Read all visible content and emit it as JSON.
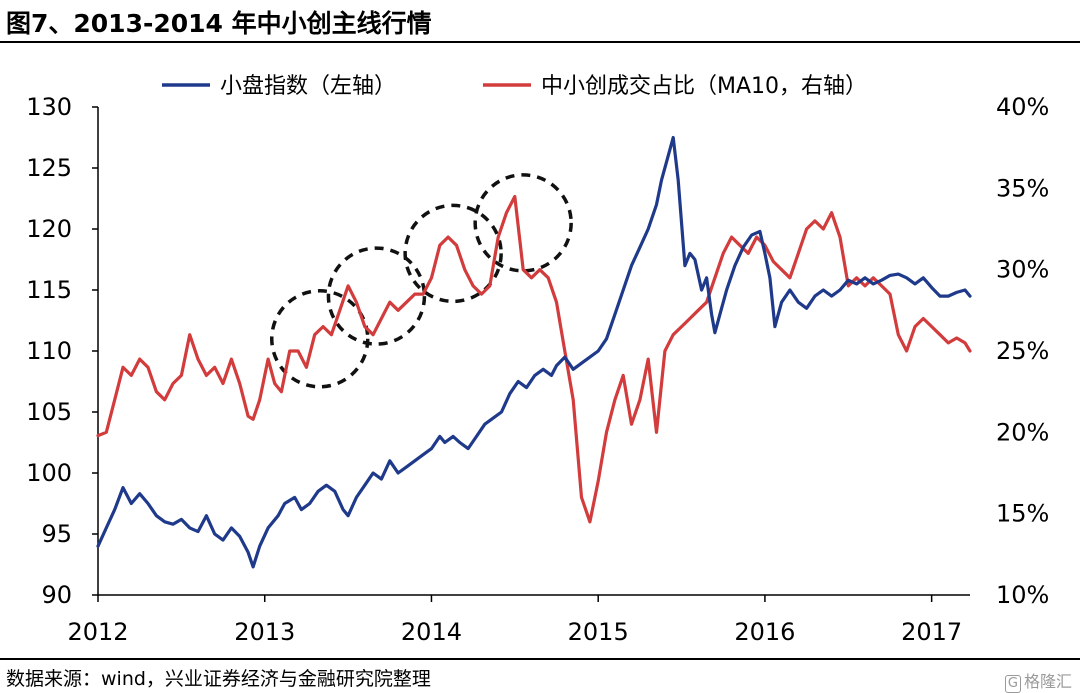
{
  "figure": {
    "title": "图7、2013-2014 年中小创主线行情",
    "source": "数据来源：wind，兴业证券经济与金融研究院整理",
    "watermark": "格隆汇",
    "watermark_icon": "G"
  },
  "chart_data": {
    "type": "line",
    "title": "",
    "grid": false,
    "legend_position": "top",
    "x_axis": {
      "min": 2012,
      "max": 2017.23,
      "ticks": [
        2012,
        2013,
        2014,
        2015,
        2016,
        2017
      ],
      "tick_labels": [
        "2012",
        "2013",
        "2014",
        "2015",
        "2016",
        "2017"
      ]
    },
    "y_left": {
      "min": 90,
      "max": 130,
      "ticks": [
        90,
        95,
        100,
        105,
        110,
        115,
        120,
        125,
        130
      ],
      "tick_labels": [
        "90",
        "95",
        "100",
        "105",
        "110",
        "115",
        "120",
        "125",
        "130"
      ]
    },
    "y_right": {
      "min": 10,
      "max": 40,
      "ticks": [
        10,
        15,
        20,
        25,
        30,
        35,
        40
      ],
      "tick_labels": [
        "10%",
        "15%",
        "20%",
        "25%",
        "30%",
        "35%",
        "40%"
      ]
    },
    "series": [
      {
        "name": "小盘指数（左轴）",
        "axis": "left",
        "color": "#1f3a8a",
        "x": [
          2012.0,
          2012.05,
          2012.1,
          2012.15,
          2012.2,
          2012.25,
          2012.3,
          2012.35,
          2012.4,
          2012.45,
          2012.5,
          2012.55,
          2012.6,
          2012.65,
          2012.7,
          2012.75,
          2012.8,
          2012.85,
          2012.9,
          2012.93,
          2012.97,
          2013.02,
          2013.08,
          2013.12,
          2013.18,
          2013.22,
          2013.27,
          2013.32,
          2013.37,
          2013.42,
          2013.47,
          2013.5,
          2013.55,
          2013.6,
          2013.65,
          2013.7,
          2013.75,
          2013.8,
          2013.85,
          2013.9,
          2013.95,
          2014.0,
          2014.05,
          2014.08,
          2014.13,
          2014.17,
          2014.22,
          2014.27,
          2014.32,
          2014.37,
          2014.42,
          2014.47,
          2014.52,
          2014.57,
          2014.62,
          2014.67,
          2014.72,
          2014.75,
          2014.8,
          2014.85,
          2014.9,
          2014.95,
          2015.0,
          2015.05,
          2015.1,
          2015.15,
          2015.2,
          2015.25,
          2015.3,
          2015.35,
          2015.38,
          2015.42,
          2015.45,
          2015.48,
          2015.52,
          2015.55,
          2015.58,
          2015.62,
          2015.65,
          2015.68,
          2015.7,
          2015.73,
          2015.77,
          2015.82,
          2015.87,
          2015.92,
          2015.97,
          2016.0,
          2016.03,
          2016.06,
          2016.1,
          2016.15,
          2016.2,
          2016.25,
          2016.3,
          2016.35,
          2016.4,
          2016.45,
          2016.5,
          2016.55,
          2016.6,
          2016.65,
          2016.7,
          2016.75,
          2016.8,
          2016.85,
          2016.9,
          2016.95,
          2017.0,
          2017.05,
          2017.1,
          2017.15,
          2017.2,
          2017.23
        ],
        "values": [
          94,
          95.5,
          97,
          98.8,
          97.5,
          98.3,
          97.5,
          96.5,
          96,
          95.8,
          96.2,
          95.5,
          95.2,
          96.5,
          95,
          94.5,
          95.5,
          94.8,
          93.5,
          92.3,
          94,
          95.5,
          96.5,
          97.5,
          98,
          97,
          97.5,
          98.5,
          99,
          98.5,
          97,
          96.5,
          98,
          99,
          100,
          99.5,
          101,
          100,
          100.5,
          101,
          101.5,
          102,
          103,
          102.5,
          103,
          102.5,
          102,
          103,
          104,
          104.5,
          105,
          106.5,
          107.5,
          107,
          108,
          108.5,
          108,
          108.8,
          109.5,
          108.5,
          109,
          109.5,
          110,
          111,
          113,
          115,
          117,
          118.5,
          120,
          122,
          124,
          126,
          127.5,
          124,
          117,
          118,
          117.5,
          115,
          116,
          113,
          111.5,
          113,
          115,
          117,
          118.5,
          119.5,
          119.8,
          118,
          116,
          112,
          114,
          115,
          114,
          113.5,
          114.5,
          115,
          114.5,
          115,
          115.8,
          115.5,
          116,
          115.5,
          115.8,
          116.2,
          116.3,
          116,
          115.5,
          116,
          115.2,
          114.5,
          114.5,
          114.8,
          115,
          114.5
        ]
      },
      {
        "name": "中小创成交占比（MA10，右轴）",
        "axis": "right",
        "color": "#d23c3c",
        "x": [
          2012.0,
          2012.05,
          2012.1,
          2012.15,
          2012.2,
          2012.25,
          2012.3,
          2012.35,
          2012.4,
          2012.45,
          2012.5,
          2012.55,
          2012.6,
          2012.65,
          2012.7,
          2012.75,
          2012.8,
          2012.85,
          2012.9,
          2012.93,
          2012.97,
          2013.02,
          2013.06,
          2013.1,
          2013.15,
          2013.2,
          2013.25,
          2013.3,
          2013.35,
          2013.4,
          2013.45,
          2013.5,
          2013.55,
          2013.6,
          2013.65,
          2013.7,
          2013.75,
          2013.8,
          2013.85,
          2013.9,
          2013.95,
          2014.0,
          2014.05,
          2014.1,
          2014.15,
          2014.2,
          2014.25,
          2014.3,
          2014.35,
          2014.4,
          2014.45,
          2014.5,
          2014.55,
          2014.6,
          2014.65,
          2014.7,
          2014.75,
          2014.8,
          2014.85,
          2014.9,
          2014.95,
          2015.0,
          2015.05,
          2015.1,
          2015.15,
          2015.2,
          2015.25,
          2015.3,
          2015.35,
          2015.4,
          2015.45,
          2015.5,
          2015.55,
          2015.6,
          2015.65,
          2015.7,
          2015.75,
          2015.8,
          2015.85,
          2015.9,
          2015.95,
          2016.0,
          2016.05,
          2016.1,
          2016.15,
          2016.2,
          2016.25,
          2016.3,
          2016.35,
          2016.4,
          2016.45,
          2016.5,
          2016.55,
          2016.6,
          2016.65,
          2016.7,
          2016.75,
          2016.8,
          2016.85,
          2016.9,
          2016.95,
          2017.0,
          2017.05,
          2017.1,
          2017.15,
          2017.2,
          2017.23
        ],
        "values": [
          19.8,
          20,
          22,
          24,
          23.5,
          24.5,
          24,
          22.5,
          22,
          23,
          23.5,
          26,
          24.5,
          23.5,
          24,
          23,
          24.5,
          23,
          21,
          20.8,
          22,
          24.5,
          23,
          22.5,
          25,
          25,
          24,
          26,
          26.5,
          26,
          27.5,
          29,
          28,
          26.5,
          26,
          27,
          28,
          27.5,
          28,
          28.5,
          28.5,
          29.5,
          31.5,
          32,
          31.5,
          30,
          29,
          28.5,
          29,
          32,
          33.5,
          34.5,
          30,
          29.5,
          30,
          29.5,
          28,
          25,
          22,
          16,
          14.5,
          17,
          20,
          22,
          23.5,
          20.5,
          22,
          24.5,
          20,
          25,
          26,
          26.5,
          27,
          27.5,
          28,
          29.5,
          31,
          32,
          31.5,
          31,
          32,
          31.5,
          30.5,
          30,
          29.5,
          31,
          32.5,
          33,
          32.5,
          33.5,
          32,
          29,
          29.5,
          29,
          29.5,
          29,
          28.5,
          26,
          25,
          26.5,
          27,
          26.5,
          26,
          25.5,
          25.8,
          25.5,
          25
        ]
      }
    ],
    "annotations": [
      {
        "type": "dashed-circle",
        "x": 2013.33,
        "y": 111
      },
      {
        "type": "dashed-circle",
        "x": 2013.67,
        "y": 114.5
      },
      {
        "type": "dashed-circle",
        "x": 2014.13,
        "y": 118
      },
      {
        "type": "dashed-circle",
        "x": 2014.55,
        "y": 120.5
      }
    ]
  }
}
